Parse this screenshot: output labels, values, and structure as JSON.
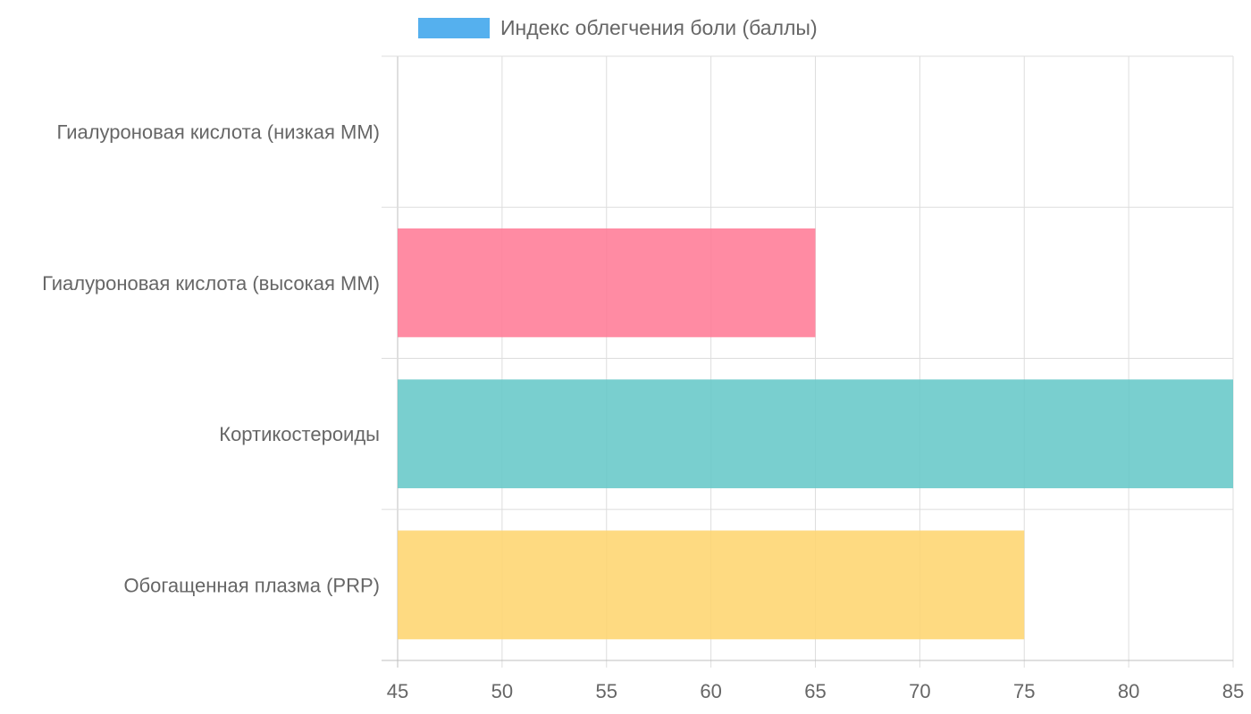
{
  "chart_data": {
    "type": "bar",
    "orientation": "horizontal",
    "categories": [
      "Гиалуроновая кислота (низкая ММ)",
      "Гиалуроновая кислота (высокая ММ)",
      "Кортикостероиды",
      "Обогащенная плазма (PRP)"
    ],
    "series": [
      {
        "name": "Индекс облегчения боли (баллы)",
        "values": [
          45,
          65,
          85,
          75
        ],
        "colors": [
          "#4bb0ee",
          "#ff7b96",
          "#66c8c8",
          "#fed56f"
        ]
      }
    ],
    "xlim": [
      45,
      85
    ],
    "xticks": [
      45,
      50,
      55,
      60,
      65,
      70,
      75,
      80,
      85
    ],
    "legend_color": "#55b0ee",
    "grid": true,
    "legend_position": "top"
  }
}
